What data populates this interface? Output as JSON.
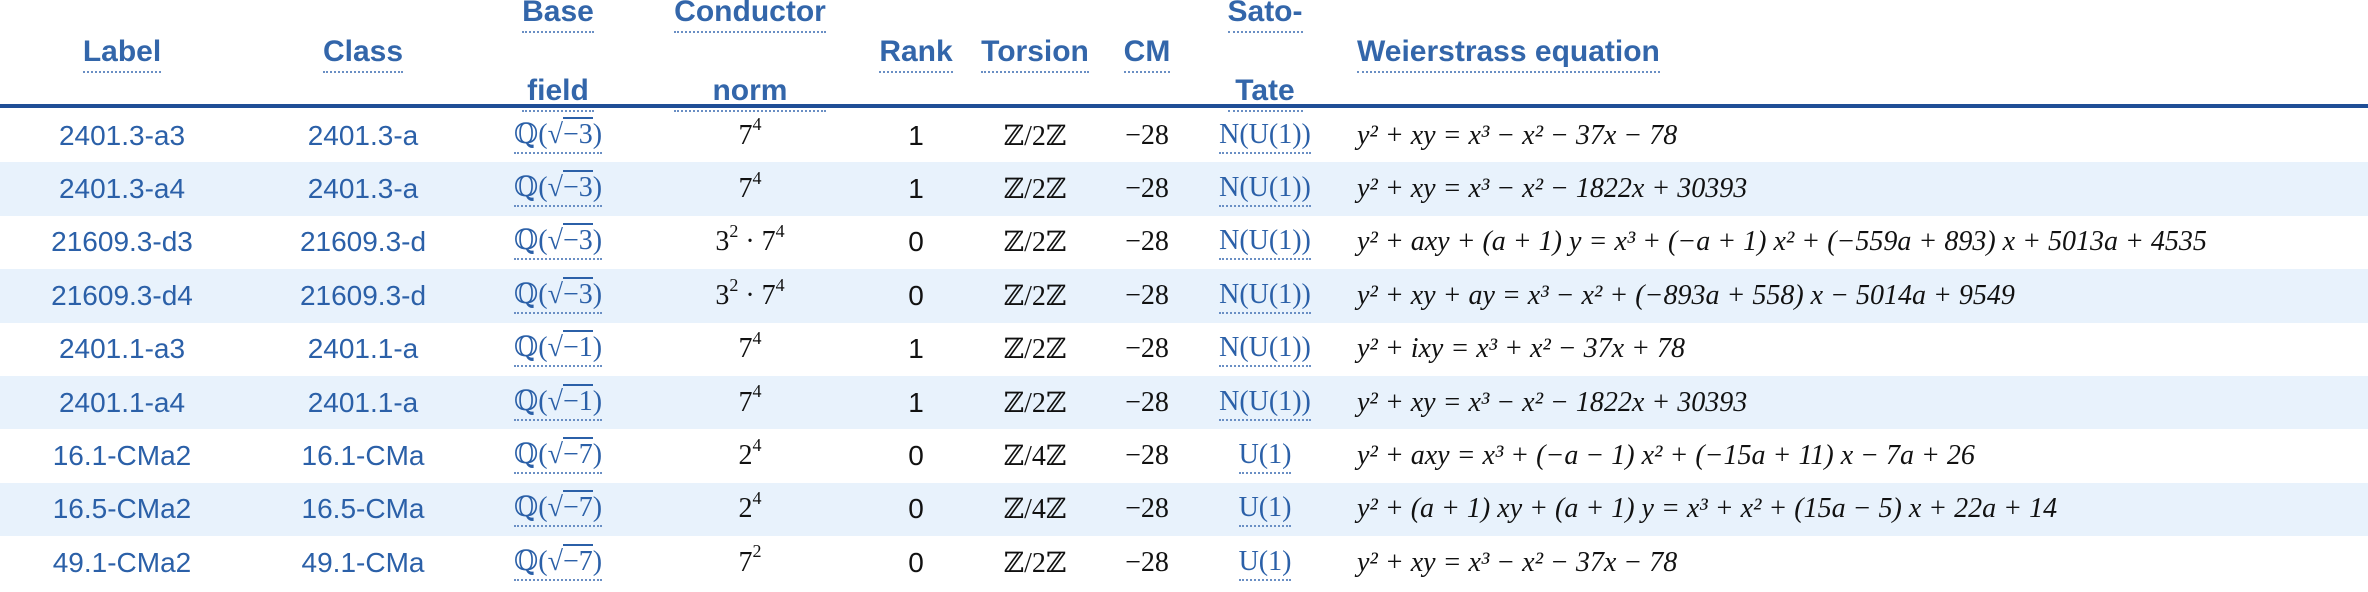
{
  "headers": {
    "label": "Label",
    "class": "Class",
    "base_field": [
      "Base",
      "field"
    ],
    "conductor_norm": [
      "Conductor",
      "norm"
    ],
    "rank": "Rank",
    "torsion": "Torsion",
    "cm": "CM",
    "sato_tate": [
      "Sato-",
      "Tate"
    ],
    "weierstrass": "Weierstrass equation"
  },
  "rows": [
    {
      "label": "2401.3-a3",
      "class": "2401.3-a",
      "field_base": "ℚ(",
      "field_rad": "√",
      "field_arg": "−3",
      "field_close": ")",
      "cond_html": "7<sup>4</sup>",
      "rank": "1",
      "torsion": "ℤ/2ℤ",
      "cm": "−28",
      "sato_tate": "N(U(1))",
      "equation": "y² + xy = x³ − x² − 37x − 78"
    },
    {
      "label": "2401.3-a4",
      "class": "2401.3-a",
      "field_base": "ℚ(",
      "field_rad": "√",
      "field_arg": "−3",
      "field_close": ")",
      "cond_html": "7<sup>4</sup>",
      "rank": "1",
      "torsion": "ℤ/2ℤ",
      "cm": "−28",
      "sato_tate": "N(U(1))",
      "equation": "y² + xy = x³ − x² − 1822x + 30393"
    },
    {
      "label": "21609.3-d3",
      "class": "21609.3-d",
      "field_base": "ℚ(",
      "field_rad": "√",
      "field_arg": "−3",
      "field_close": ")",
      "cond_html": "3<sup>2</sup> · 7<sup>4</sup>",
      "rank": "0",
      "torsion": "ℤ/2ℤ",
      "cm": "−28",
      "sato_tate": "N(U(1))",
      "equation": "y² + axy + (a + 1) y = x³ + (−a + 1) x² + (−559a + 893) x + 5013a + 4535"
    },
    {
      "label": "21609.3-d4",
      "class": "21609.3-d",
      "field_base": "ℚ(",
      "field_rad": "√",
      "field_arg": "−3",
      "field_close": ")",
      "cond_html": "3<sup>2</sup> · 7<sup>4</sup>",
      "rank": "0",
      "torsion": "ℤ/2ℤ",
      "cm": "−28",
      "sato_tate": "N(U(1))",
      "equation": "y² + xy + ay = x³ − x² + (−893a + 558) x − 5014a + 9549"
    },
    {
      "label": "2401.1-a3",
      "class": "2401.1-a",
      "field_base": "ℚ(",
      "field_rad": "√",
      "field_arg": "−1",
      "field_close": ")",
      "cond_html": "7<sup>4</sup>",
      "rank": "1",
      "torsion": "ℤ/2ℤ",
      "cm": "−28",
      "sato_tate": "N(U(1))",
      "equation": "y² + ixy = x³ + x² − 37x + 78"
    },
    {
      "label": "2401.1-a4",
      "class": "2401.1-a",
      "field_base": "ℚ(",
      "field_rad": "√",
      "field_arg": "−1",
      "field_close": ")",
      "cond_html": "7<sup>4</sup>",
      "rank": "1",
      "torsion": "ℤ/2ℤ",
      "cm": "−28",
      "sato_tate": "N(U(1))",
      "equation": "y² + xy = x³ − x² − 1822x + 30393"
    },
    {
      "label": "16.1-CMa2",
      "class": "16.1-CMa",
      "field_base": "ℚ(",
      "field_rad": "√",
      "field_arg": "−7",
      "field_close": ")",
      "cond_html": "2<sup>4</sup>",
      "rank": "0",
      "torsion": "ℤ/4ℤ",
      "cm": "−28",
      "sato_tate": "U(1)",
      "equation": "y² + axy = x³ + (−a − 1) x² + (−15a + 11) x − 7a + 26"
    },
    {
      "label": "16.5-CMa2",
      "class": "16.5-CMa",
      "field_base": "ℚ(",
      "field_rad": "√",
      "field_arg": "−7",
      "field_close": ")",
      "cond_html": "2<sup>4</sup>",
      "rank": "0",
      "torsion": "ℤ/4ℤ",
      "cm": "−28",
      "sato_tate": "U(1)",
      "equation": "y² + (a + 1) xy + (a + 1) y = x³ + x² + (15a − 5) x + 22a + 14"
    },
    {
      "label": "49.1-CMa2",
      "class": "49.1-CMa",
      "field_base": "ℚ(",
      "field_rad": "√",
      "field_arg": "−7",
      "field_close": ")",
      "cond_html": "7<sup>2</sup>",
      "rank": "0",
      "torsion": "ℤ/2ℤ",
      "cm": "−28",
      "sato_tate": "U(1)",
      "equation": "y² + xy = x³ − x² − 37x − 78"
    }
  ]
}
